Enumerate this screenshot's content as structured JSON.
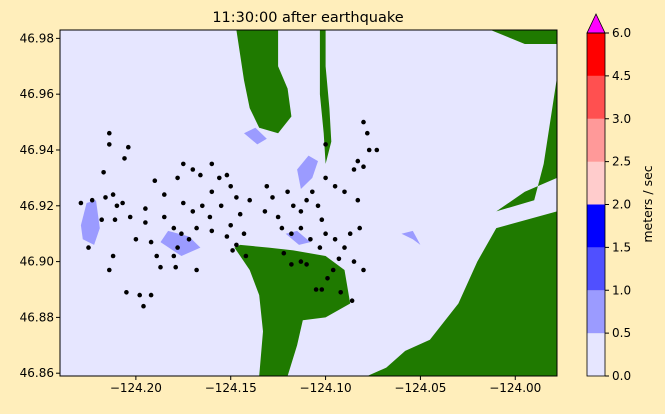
{
  "chart_data": {
    "type": "heatmap",
    "title": "11:30:00 after earthquake",
    "xlim": [
      -124.24,
      -123.978
    ],
    "ylim": [
      46.859,
      46.983
    ],
    "x_ticks": [
      {
        "value": -124.2,
        "label": "−124.20"
      },
      {
        "value": -124.15,
        "label": "−124.15"
      },
      {
        "value": -124.1,
        "label": "−124.10"
      },
      {
        "value": -124.05,
        "label": "−124.05"
      },
      {
        "value": -124.0,
        "label": "−124.00"
      }
    ],
    "y_ticks": [
      {
        "value": 46.86,
        "label": "46.86"
      },
      {
        "value": 46.88,
        "label": "46.88"
      },
      {
        "value": 46.9,
        "label": "46.90"
      },
      {
        "value": 46.92,
        "label": "46.92"
      },
      {
        "value": 46.94,
        "label": "46.94"
      },
      {
        "value": 46.96,
        "label": "46.96"
      },
      {
        "value": 46.98,
        "label": "46.98"
      }
    ],
    "colorbar": {
      "label": "meters / sec",
      "extend": "max",
      "extend_color": "#ff00ff",
      "levels": [
        0.0,
        0.5,
        1.0,
        1.5,
        2.0,
        2.5,
        3.0,
        4.5,
        6.0
      ],
      "level_labels": [
        "0.0",
        "0.5",
        "1.0",
        "1.5",
        "2.0",
        "2.5",
        "3.0",
        "4.5",
        "6.0"
      ],
      "colors": [
        "#e6e6ff",
        "#9b9bff",
        "#5050ff",
        "#0000ff",
        "#ffcccc",
        "#ff9999",
        "#ff5050",
        "#ff0000"
      ]
    },
    "land_color": "#1f7a00",
    "water_color": "#e6e6ff",
    "land_polygons": [
      [
        [
          -124.147,
          46.983
        ],
        [
          -124.125,
          46.983
        ],
        [
          -124.125,
          46.97
        ],
        [
          -124.12,
          46.962
        ],
        [
          -124.118,
          46.952
        ],
        [
          -124.125,
          46.946
        ],
        [
          -124.135,
          46.948
        ],
        [
          -124.14,
          46.955
        ],
        [
          -124.143,
          46.965
        ]
      ],
      [
        [
          -124.103,
          46.983
        ],
        [
          -124.1,
          46.983
        ],
        [
          -124.1,
          46.97
        ],
        [
          -124.098,
          46.955
        ],
        [
          -124.097,
          46.943
        ],
        [
          -124.1,
          46.935
        ],
        [
          -124.101,
          46.946
        ],
        [
          -124.103,
          46.96
        ]
      ],
      [
        [
          -124.013,
          46.983
        ],
        [
          -123.978,
          46.983
        ],
        [
          -123.978,
          46.978
        ],
        [
          -123.995,
          46.978
        ]
      ],
      [
        [
          -123.978,
          46.966
        ],
        [
          -123.978,
          46.93
        ],
        [
          -123.995,
          46.925
        ],
        [
          -124.01,
          46.918
        ],
        [
          -123.99,
          46.922
        ],
        [
          -123.985,
          46.935
        ]
      ],
      [
        [
          -124.145,
          46.906
        ],
        [
          -124.13,
          46.905
        ],
        [
          -124.117,
          46.904
        ],
        [
          -124.1,
          46.902
        ],
        [
          -124.09,
          46.897
        ],
        [
          -124.087,
          46.885
        ],
        [
          -124.1,
          46.88
        ],
        [
          -124.112,
          46.879
        ],
        [
          -124.115,
          46.87
        ],
        [
          -124.12,
          46.859
        ],
        [
          -124.135,
          46.859
        ],
        [
          -124.133,
          46.875
        ],
        [
          -124.135,
          46.888
        ],
        [
          -124.14,
          46.897
        ],
        [
          -124.148,
          46.905
        ]
      ],
      [
        [
          -124.078,
          46.859
        ],
        [
          -124.068,
          46.862
        ],
        [
          -124.058,
          46.868
        ],
        [
          -124.045,
          46.872
        ],
        [
          -124.03,
          46.885
        ],
        [
          -124.02,
          46.9
        ],
        [
          -124.01,
          46.912
        ],
        [
          -123.978,
          46.918
        ],
        [
          -123.978,
          46.859
        ]
      ]
    ],
    "velocity_patches": [
      {
        "level": 0.5,
        "points": [
          [
            -124.228,
            46.908
          ],
          [
            -124.222,
            46.906
          ],
          [
            -124.219,
            46.912
          ],
          [
            -124.221,
            46.922
          ],
          [
            -124.226,
            46.921
          ],
          [
            -124.229,
            46.913
          ]
        ]
      },
      {
        "level": 0.5,
        "points": [
          [
            -124.187,
            46.907
          ],
          [
            -124.176,
            46.902
          ],
          [
            -124.166,
            46.905
          ],
          [
            -124.172,
            46.909
          ],
          [
            -124.183,
            46.911
          ]
        ]
      },
      {
        "level": 0.5,
        "points": [
          [
            -124.113,
            46.926
          ],
          [
            -124.107,
            46.93
          ],
          [
            -124.104,
            46.936
          ],
          [
            -124.109,
            46.938
          ],
          [
            -124.115,
            46.933
          ]
        ]
      },
      {
        "level": 0.5,
        "points": [
          [
            -124.143,
            46.946
          ],
          [
            -124.136,
            46.942
          ],
          [
            -124.131,
            46.944
          ],
          [
            -124.137,
            46.948
          ]
        ]
      },
      {
        "level": 0.5,
        "points": [
          [
            -124.06,
            46.91
          ],
          [
            -124.054,
            46.908
          ],
          [
            -124.05,
            46.906
          ],
          [
            -124.054,
            46.911
          ]
        ]
      },
      {
        "level": 0.5,
        "points": [
          [
            -124.121,
            46.91
          ],
          [
            -124.114,
            46.906
          ],
          [
            -124.108,
            46.907
          ],
          [
            -124.115,
            46.911
          ]
        ]
      }
    ],
    "markers": [
      [
        -124.214,
        46.946
      ],
      [
        -124.214,
        46.942
      ],
      [
        -124.216,
        46.923
      ],
      [
        -124.218,
        46.915
      ],
      [
        -124.211,
        46.915
      ],
      [
        -124.21,
        46.92
      ],
      [
        -124.212,
        46.924
      ],
      [
        -124.207,
        46.921
      ],
      [
        -124.203,
        46.916
      ],
      [
        -124.195,
        46.919
      ],
      [
        -124.2,
        46.908
      ],
      [
        -124.195,
        46.914
      ],
      [
        -124.192,
        46.907
      ],
      [
        -124.19,
        46.929
      ],
      [
        -124.185,
        46.924
      ],
      [
        -124.18,
        46.912
      ],
      [
        -124.176,
        46.91
      ],
      [
        -124.178,
        46.905
      ],
      [
        -124.18,
        46.902
      ],
      [
        -124.172,
        46.908
      ],
      [
        -124.168,
        46.912
      ],
      [
        -124.17,
        46.933
      ],
      [
        -124.166,
        46.931
      ],
      [
        -124.16,
        46.925
      ],
      [
        -124.156,
        46.93
      ],
      [
        -124.152,
        46.931
      ],
      [
        -124.15,
        46.927
      ],
      [
        -124.147,
        46.923
      ],
      [
        -124.145,
        46.917
      ],
      [
        -124.143,
        46.91
      ],
      [
        -124.14,
        46.922
      ],
      [
        -124.147,
        46.906
      ],
      [
        -124.149,
        46.904
      ],
      [
        -124.152,
        46.909
      ],
      [
        -124.15,
        46.913
      ],
      [
        -124.155,
        46.92
      ],
      [
        -124.161,
        46.916
      ],
      [
        -124.16,
        46.911
      ],
      [
        -124.165,
        46.92
      ],
      [
        -124.17,
        46.918
      ],
      [
        -124.175,
        46.921
      ],
      [
        -124.185,
        46.916
      ],
      [
        -124.189,
        46.902
      ],
      [
        -124.187,
        46.898
      ],
      [
        -124.192,
        46.888
      ],
      [
        -124.196,
        46.884
      ],
      [
        -124.198,
        46.888
      ],
      [
        -124.205,
        46.889
      ],
      [
        -124.214,
        46.897
      ],
      [
        -124.212,
        46.902
      ],
      [
        -124.225,
        46.905
      ],
      [
        -124.229,
        46.921
      ],
      [
        -124.223,
        46.922
      ],
      [
        -124.206,
        46.937
      ],
      [
        -124.204,
        46.941
      ],
      [
        -124.217,
        46.932
      ],
      [
        -124.179,
        46.898
      ],
      [
        -124.168,
        46.897
      ],
      [
        -124.142,
        46.902
      ],
      [
        -124.131,
        46.927
      ],
      [
        -124.128,
        46.923
      ],
      [
        -124.132,
        46.918
      ],
      [
        -124.125,
        46.916
      ],
      [
        -124.123,
        46.912
      ],
      [
        -124.12,
        46.925
      ],
      [
        -124.117,
        46.92
      ],
      [
        -124.113,
        46.918
      ],
      [
        -124.11,
        46.922
      ],
      [
        -124.107,
        46.925
      ],
      [
        -124.104,
        46.92
      ],
      [
        -124.102,
        46.915
      ],
      [
        -124.103,
        46.905
      ],
      [
        -124.108,
        46.908
      ],
      [
        -124.113,
        46.912
      ],
      [
        -124.118,
        46.91
      ],
      [
        -124.1,
        46.91
      ],
      [
        -124.095,
        46.908
      ],
      [
        -124.09,
        46.905
      ],
      [
        -124.087,
        46.91
      ],
      [
        -124.085,
        46.9
      ],
      [
        -124.093,
        46.901
      ],
      [
        -124.096,
        46.897
      ],
      [
        -124.099,
        46.894
      ],
      [
        -124.102,
        46.89
      ],
      [
        -124.092,
        46.889
      ],
      [
        -124.086,
        46.886
      ],
      [
        -124.08,
        46.897
      ],
      [
        -124.082,
        46.912
      ],
      [
        -124.083,
        46.922
      ],
      [
        -124.095,
        46.927
      ],
      [
        -124.1,
        46.93
      ],
      [
        -124.085,
        46.933
      ],
      [
        -124.083,
        46.936
      ],
      [
        -124.08,
        46.934
      ],
      [
        -124.077,
        46.94
      ],
      [
        -124.073,
        46.94
      ],
      [
        -124.078,
        46.946
      ],
      [
        -124.08,
        46.95
      ],
      [
        -124.1,
        46.942
      ],
      [
        -124.113,
        46.9
      ],
      [
        -124.118,
        46.899
      ],
      [
        -124.122,
        46.903
      ],
      [
        -124.11,
        46.899
      ],
      [
        -124.105,
        46.89
      ],
      [
        -124.09,
        46.925
      ],
      [
        -124.175,
        46.935
      ],
      [
        -124.178,
        46.93
      ],
      [
        -124.16,
        46.935
      ]
    ]
  }
}
